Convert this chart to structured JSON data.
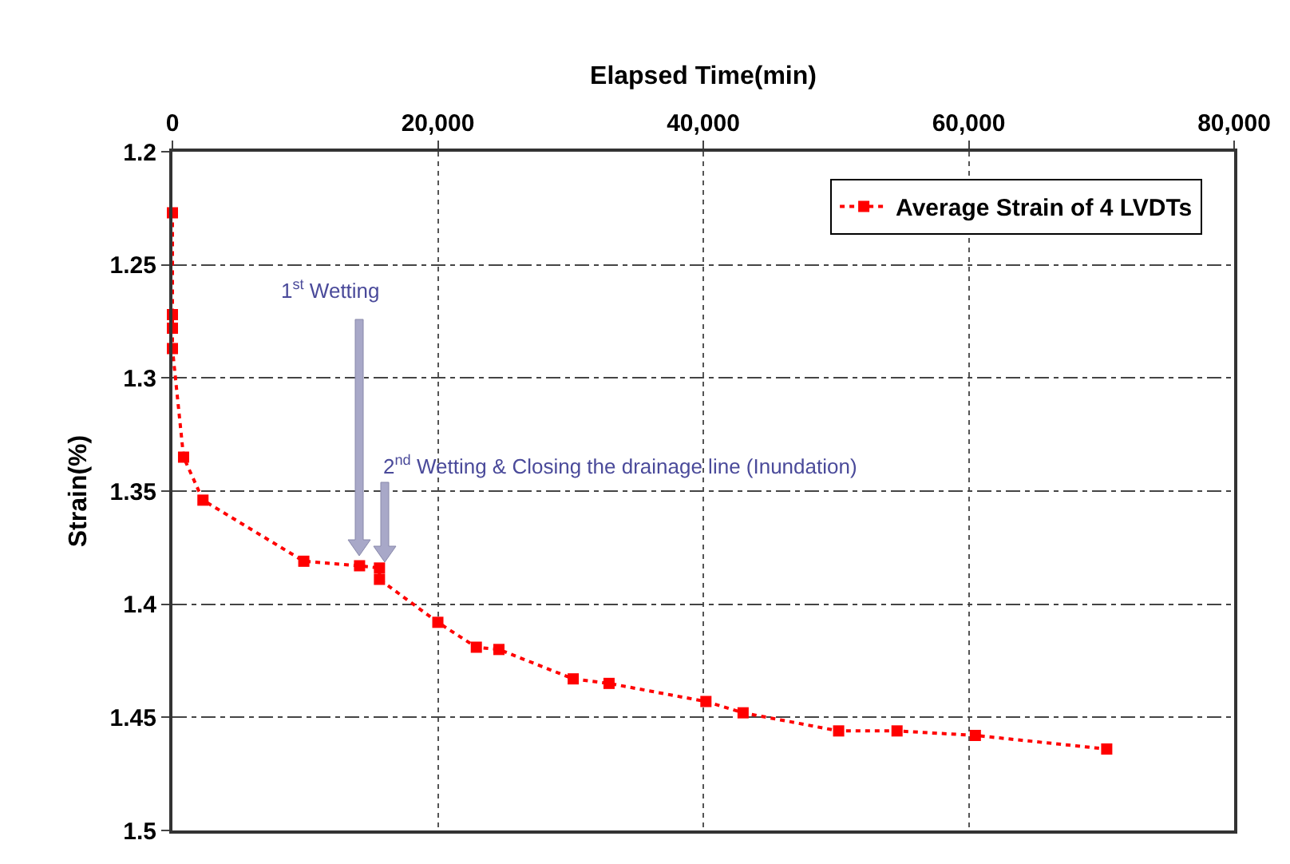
{
  "chart_data": {
    "type": "line",
    "xlabel": "Elapsed Time(min)",
    "ylabel": "Strain(%)",
    "xlim": [
      0,
      80000
    ],
    "xticks": [
      0,
      {
        "value": 20000,
        "label": "20,000"
      },
      {
        "value": 40000,
        "label": "40,000"
      },
      {
        "value": 60000,
        "label": "60,000"
      },
      {
        "value": 80000,
        "label": "80,000"
      }
    ],
    "ylim": [
      1.5,
      1.2
    ],
    "yticks": [
      1.2,
      1.25,
      1.3,
      1.35,
      1.4,
      1.45,
      1.5
    ],
    "grid": true,
    "legend": "top right",
    "marker": "square",
    "line_style": "dotted",
    "series": [
      {
        "name": "Average Strain of 4 LVDTs",
        "color": "#ff0000",
        "x": [
          0,
          0,
          0,
          0,
          840,
          2300,
          9900,
          14100,
          15600,
          15600,
          20000,
          22900,
          24600,
          30200,
          32900,
          40200,
          43000,
          50200,
          54600,
          60500,
          70400
        ],
        "values": [
          1.227,
          1.272,
          1.278,
          1.287,
          1.335,
          1.354,
          1.381,
          1.383,
          1.384,
          1.389,
          1.408,
          1.419,
          1.42,
          1.433,
          1.435,
          1.443,
          1.448,
          1.456,
          1.456,
          1.458,
          1.464
        ]
      }
    ],
    "annotations": [
      "1$^{st}$ Wetting",
      "2$^{nd}$ Wetting & Closing the drainage line (Inundation)"
    ]
  }
}
